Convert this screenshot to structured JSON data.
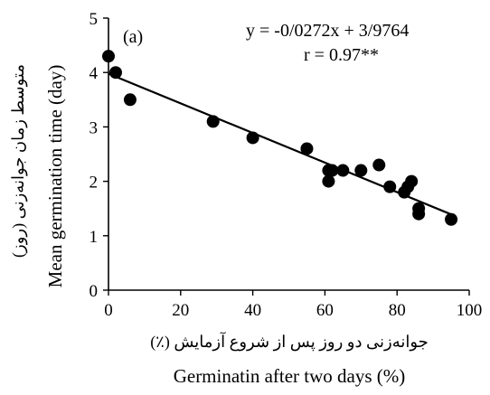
{
  "chart_data": {
    "type": "scatter",
    "panel_label": "(a)",
    "equation": "y = -0/0272x + 3/9764",
    "r_value": "r = 0.97**",
    "xlabel_en": "Germinatin after two days (%)",
    "xlabel_fa": "جوانه‌زنی دو روز پس از شروع آزمایش (٪)",
    "ylabel_en": "Mean germination time (day)",
    "ylabel_fa": "متوسط زمان جوانه‌زنی (روز)",
    "xlim": [
      0,
      100
    ],
    "ylim": [
      0,
      5
    ],
    "x_ticks": [
      "0",
      "20",
      "40",
      "60",
      "80",
      "100"
    ],
    "y_ticks": [
      "0",
      "1",
      "2",
      "3",
      "4",
      "5"
    ],
    "grid": false,
    "trendline": {
      "slope": -0.0272,
      "intercept": 3.9764,
      "x_range": [
        0,
        95
      ]
    },
    "points": [
      {
        "x": 0,
        "y": 4.3
      },
      {
        "x": 2,
        "y": 4.0
      },
      {
        "x": 6,
        "y": 3.5
      },
      {
        "x": 29,
        "y": 3.1
      },
      {
        "x": 40,
        "y": 2.8
      },
      {
        "x": 55,
        "y": 2.6
      },
      {
        "x": 61,
        "y": 2.2
      },
      {
        "x": 61,
        "y": 2.0
      },
      {
        "x": 62,
        "y": 2.2
      },
      {
        "x": 65,
        "y": 2.2
      },
      {
        "x": 70,
        "y": 2.2
      },
      {
        "x": 75,
        "y": 2.3
      },
      {
        "x": 78,
        "y": 1.9
      },
      {
        "x": 82,
        "y": 1.8
      },
      {
        "x": 83,
        "y": 1.9
      },
      {
        "x": 84,
        "y": 2.0
      },
      {
        "x": 86,
        "y": 1.5
      },
      {
        "x": 86,
        "y": 1.4
      },
      {
        "x": 95,
        "y": 1.3
      }
    ]
  }
}
